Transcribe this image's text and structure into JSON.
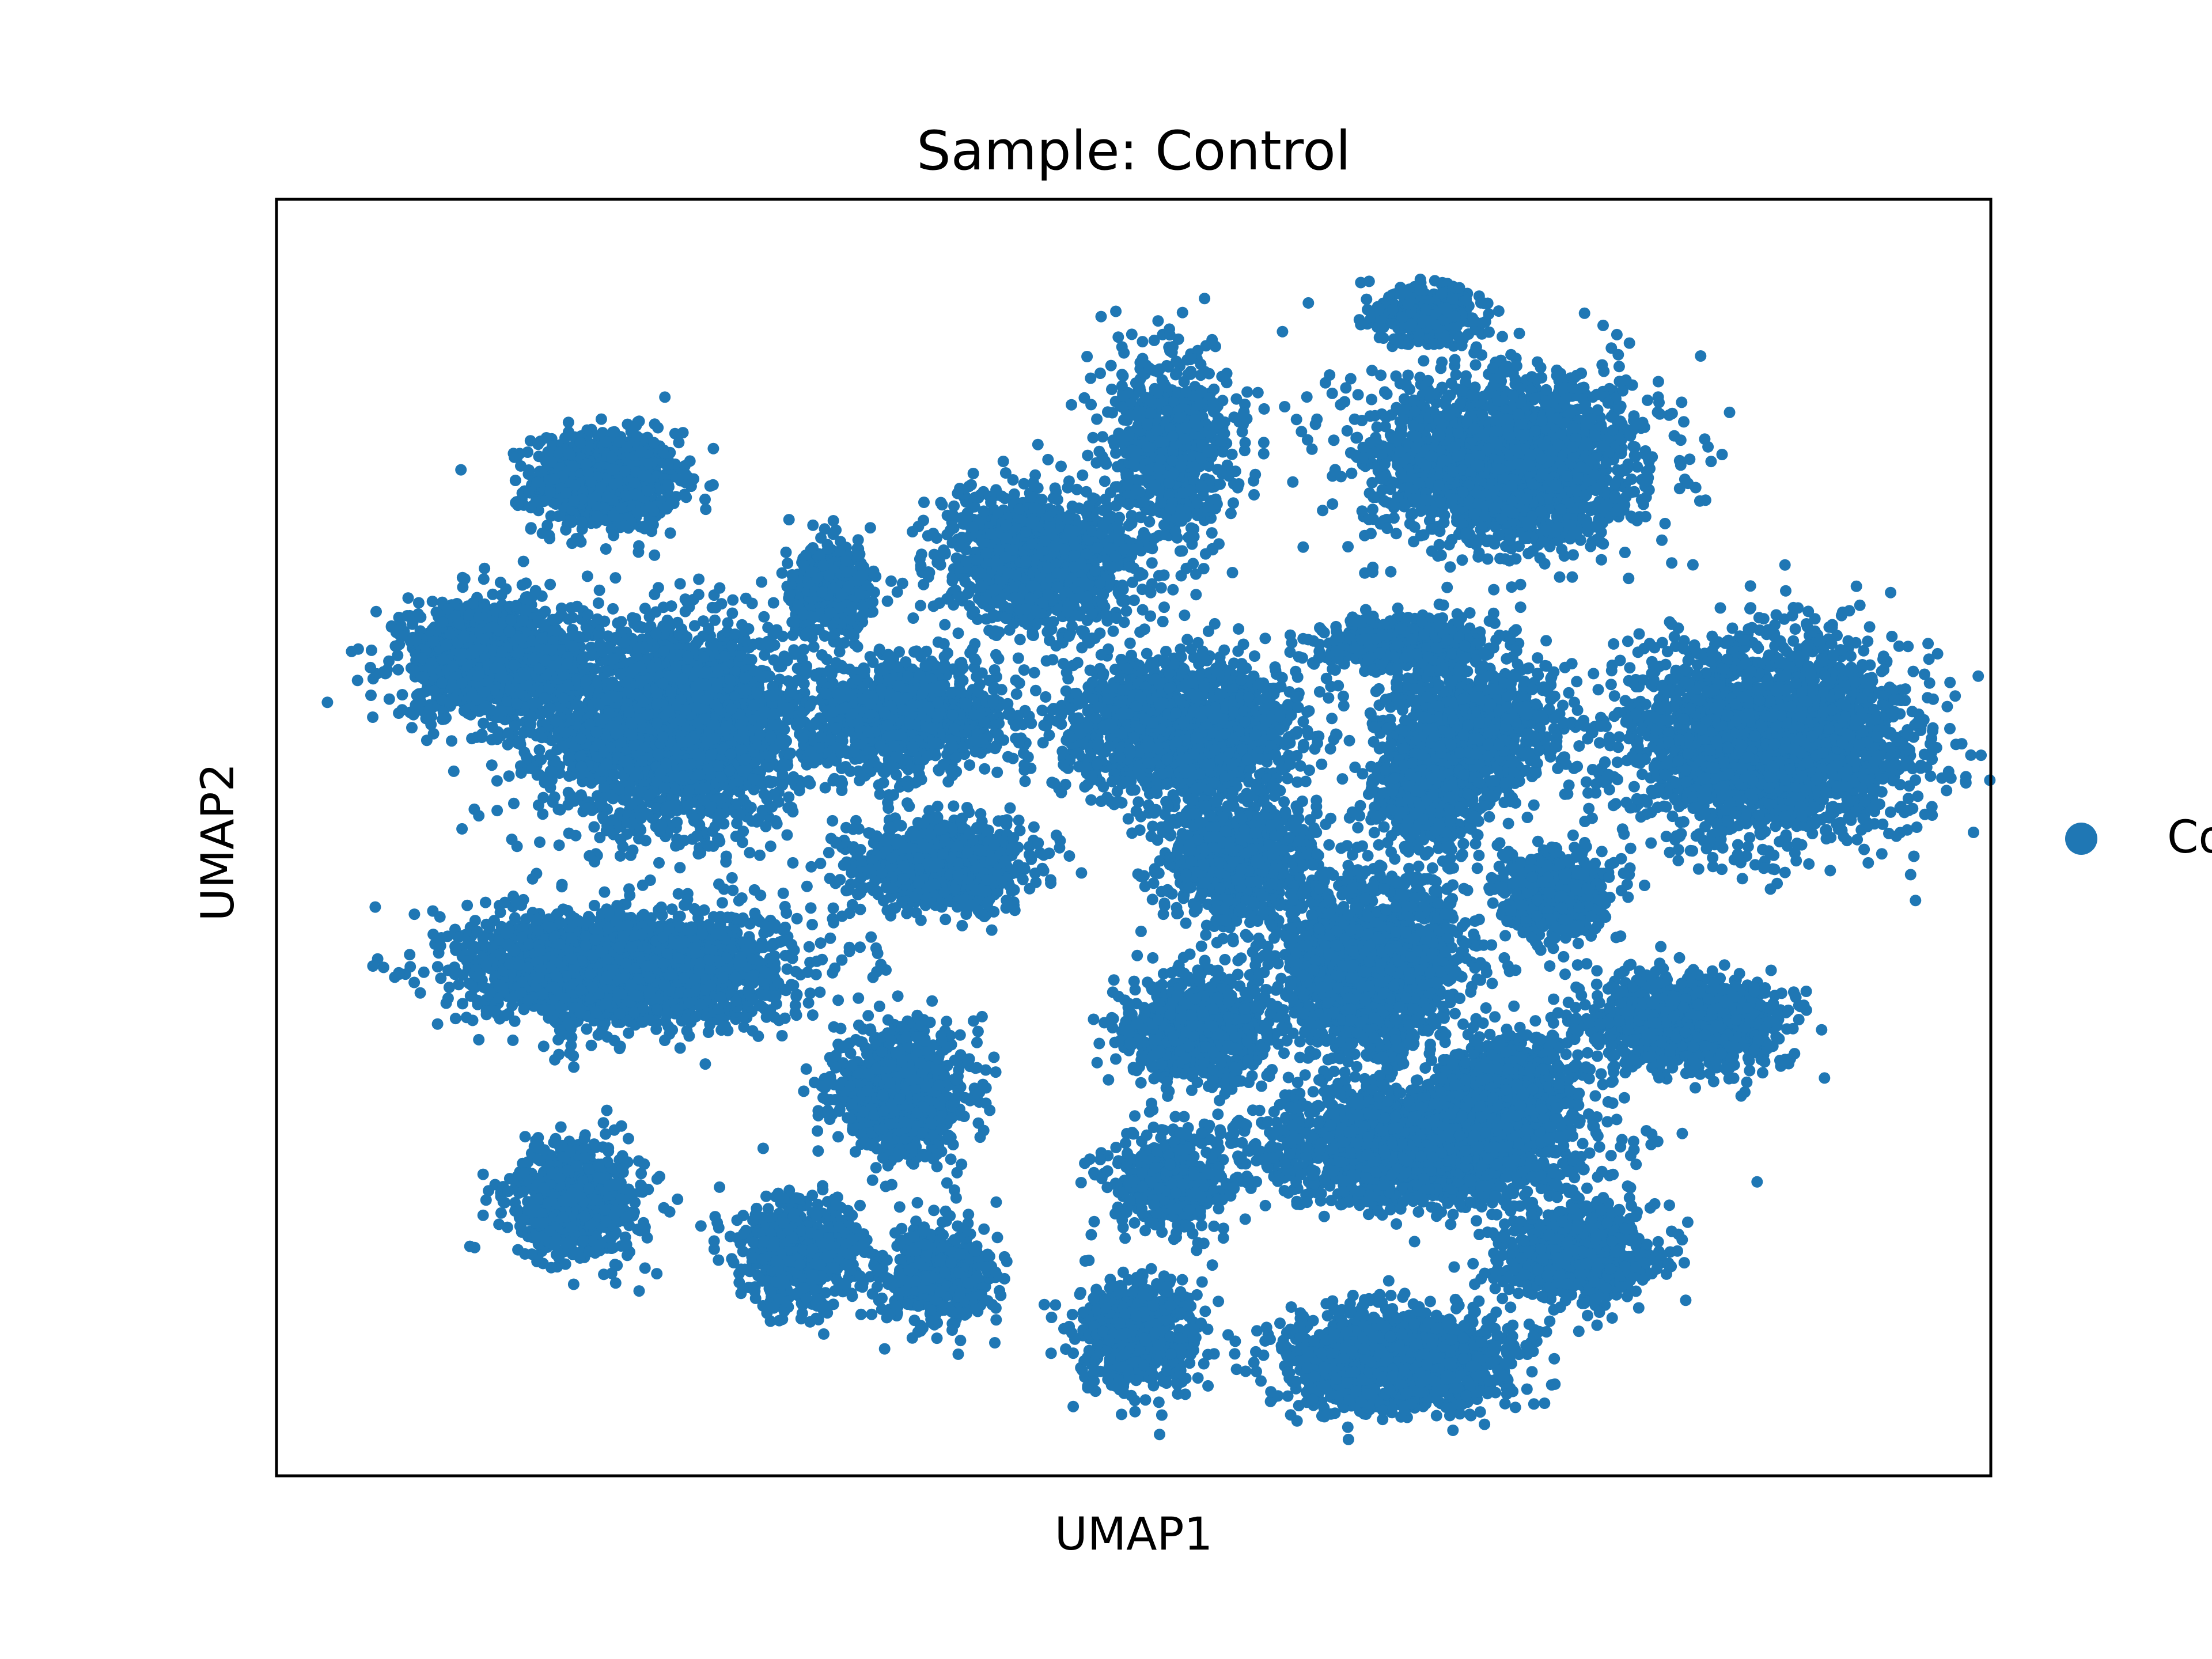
{
  "chart_data": {
    "type": "scatter",
    "title": "Sample: Control",
    "xlabel": "UMAP1",
    "ylabel": "UMAP2",
    "xticks": false,
    "yticks": false,
    "grid": false,
    "legend": {
      "placement": "right",
      "entries": [
        {
          "name": "Co",
          "color": "#1f77b4"
        }
      ]
    },
    "point_color": "#1f77b4",
    "xlim": [
      0,
      1
    ],
    "ylim": [
      0,
      1
    ],
    "clusters": [
      {
        "cx": 0.192,
        "cy": 0.779,
        "sx": 0.038,
        "sy": 0.035,
        "w": 1.0
      },
      {
        "cx": 0.232,
        "cy": 0.588,
        "sx": 0.07,
        "sy": 0.07,
        "w": 3.0
      },
      {
        "cx": 0.125,
        "cy": 0.64,
        "sx": 0.048,
        "sy": 0.042,
        "w": 1.2
      },
      {
        "cx": 0.205,
        "cy": 0.398,
        "sx": 0.083,
        "sy": 0.04,
        "w": 2.6
      },
      {
        "cx": 0.175,
        "cy": 0.215,
        "sx": 0.035,
        "sy": 0.041,
        "w": 0.8
      },
      {
        "cx": 0.305,
        "cy": 0.174,
        "sx": 0.033,
        "sy": 0.039,
        "w": 0.7
      },
      {
        "cx": 0.325,
        "cy": 0.693,
        "sx": 0.022,
        "sy": 0.032,
        "w": 0.5
      },
      {
        "cx": 0.368,
        "cy": 0.595,
        "sx": 0.05,
        "sy": 0.04,
        "w": 1.2
      },
      {
        "cx": 0.365,
        "cy": 0.3,
        "sx": 0.035,
        "sy": 0.046,
        "w": 1.0
      },
      {
        "cx": 0.388,
        "cy": 0.479,
        "sx": 0.045,
        "sy": 0.03,
        "w": 1.1
      },
      {
        "cx": 0.385,
        "cy": 0.155,
        "sx": 0.03,
        "sy": 0.035,
        "w": 0.6
      },
      {
        "cx": 0.444,
        "cy": 0.715,
        "sx": 0.05,
        "sy": 0.05,
        "w": 1.4
      },
      {
        "cx": 0.528,
        "cy": 0.585,
        "sx": 0.062,
        "sy": 0.05,
        "w": 1.8
      },
      {
        "cx": 0.522,
        "cy": 0.805,
        "sx": 0.035,
        "sy": 0.07,
        "w": 0.8
      },
      {
        "cx": 0.535,
        "cy": 0.35,
        "sx": 0.038,
        "sy": 0.04,
        "w": 0.9
      },
      {
        "cx": 0.52,
        "cy": 0.23,
        "sx": 0.03,
        "sy": 0.034,
        "w": 0.6
      },
      {
        "cx": 0.502,
        "cy": 0.11,
        "sx": 0.032,
        "sy": 0.04,
        "w": 0.7
      },
      {
        "cx": 0.56,
        "cy": 0.48,
        "sx": 0.04,
        "sy": 0.045,
        "w": 0.9
      },
      {
        "cx": 0.638,
        "cy": 0.4,
        "sx": 0.05,
        "sy": 0.065,
        "w": 1.8
      },
      {
        "cx": 0.672,
        "cy": 0.535,
        "sx": 0.03,
        "sy": 0.042,
        "w": 0.7
      },
      {
        "cx": 0.718,
        "cy": 0.795,
        "sx": 0.072,
        "sy": 0.06,
        "w": 2.4
      },
      {
        "cx": 0.67,
        "cy": 0.91,
        "sx": 0.03,
        "sy": 0.022,
        "w": 0.35
      },
      {
        "cx": 0.872,
        "cy": 0.575,
        "sx": 0.075,
        "sy": 0.07,
        "w": 3.0
      },
      {
        "cx": 0.822,
        "cy": 0.355,
        "sx": 0.052,
        "sy": 0.034,
        "w": 1.2
      },
      {
        "cx": 0.67,
        "cy": 0.26,
        "sx": 0.085,
        "sy": 0.042,
        "w": 2.4
      },
      {
        "cx": 0.652,
        "cy": 0.092,
        "sx": 0.06,
        "sy": 0.034,
        "w": 1.6
      },
      {
        "cx": 0.76,
        "cy": 0.175,
        "sx": 0.04,
        "sy": 0.035,
        "w": 0.8
      },
      {
        "cx": 0.72,
        "cy": 0.31,
        "sx": 0.028,
        "sy": 0.03,
        "w": 0.6
      },
      {
        "cx": 0.745,
        "cy": 0.455,
        "sx": 0.03,
        "sy": 0.03,
        "w": 0.6
      },
      {
        "cx": 0.7,
        "cy": 0.585,
        "sx": 0.045,
        "sy": 0.045,
        "w": 1.0
      },
      {
        "cx": 0.66,
        "cy": 0.65,
        "sx": 0.045,
        "sy": 0.02,
        "w": 0.6
      }
    ]
  }
}
